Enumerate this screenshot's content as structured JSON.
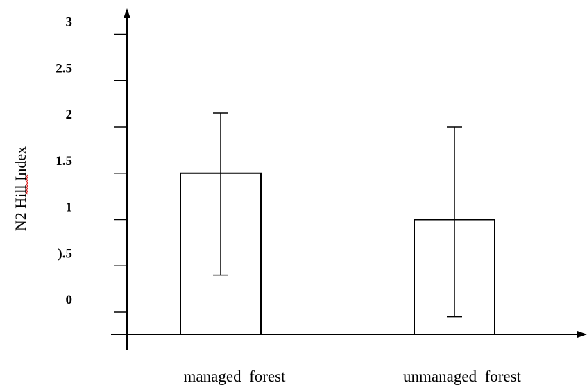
{
  "chart_data": {
    "type": "bar",
    "title": "",
    "xlabel": "",
    "ylabel": "N2 Hill Index",
    "categories": [
      "managed  forest",
      "unmanaged  forest"
    ],
    "values": [
      1.5,
      1.0
    ],
    "error_low": [
      0.4,
      -0.05
    ],
    "error_high": [
      2.15,
      2.0
    ],
    "yticks": [
      0,
      0.5,
      1,
      1.5,
      2,
      2.5,
      3
    ],
    "ytick_labels": [
      "0",
      ").5",
      "1",
      "1.5",
      "2",
      "2.5",
      "3"
    ],
    "ylim": [
      -0.25,
      3.3
    ],
    "grid": false,
    "legend": "none",
    "bar_fill": "#ffffff",
    "bar_stroke": "#000000"
  }
}
